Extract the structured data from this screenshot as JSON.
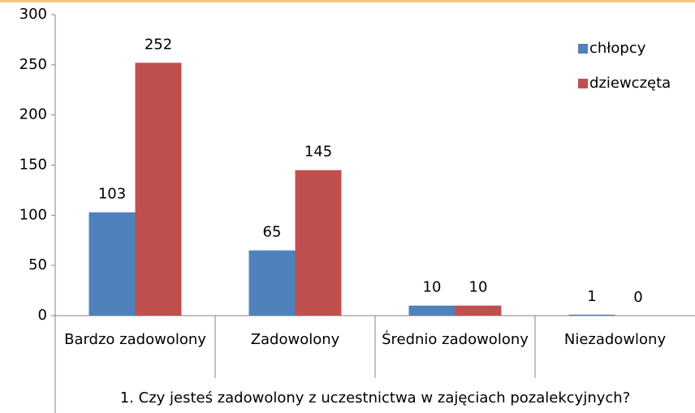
{
  "chart_data": {
    "type": "bar",
    "xlabel": "1. Czy jesteś zadowolony z uczestnictwa w zajęciach pozalekcyjnych?",
    "categories": [
      "Bardzo zadowolony",
      "Zadowolony",
      "Średnio zadowolony",
      "Niezadowlony"
    ],
    "series": [
      {
        "name": "chłopcy",
        "color": "#4f81bd",
        "values": [
          103,
          65,
          10,
          1
        ]
      },
      {
        "name": "dziewczęta",
        "color": "#c0504d",
        "values": [
          252,
          145,
          10,
          0
        ]
      }
    ],
    "ylim": [
      0,
      300
    ],
    "yticks": [
      0,
      50,
      100,
      150,
      200,
      250,
      300
    ],
    "grid": false,
    "legend": "top-right"
  }
}
